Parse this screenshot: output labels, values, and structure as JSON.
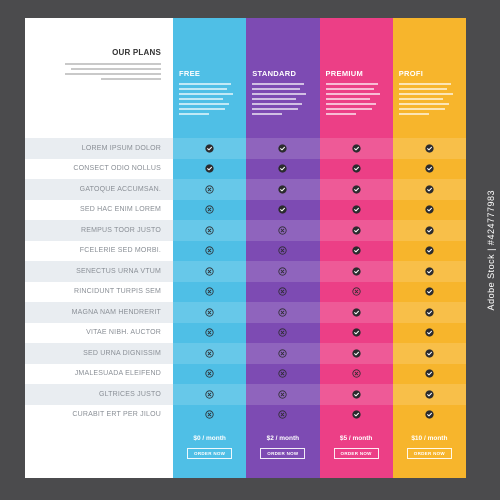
{
  "title": "OUR PLANS",
  "features": [
    "LOREM IPSUM DOLOR",
    "CONSECT ODIO NOLLUS",
    "GATOQUE ACCUMSAN.",
    "SED HAC ENIM LOREM",
    "REMPUS TOOR JUSTO",
    "FCELERIE SED MORBI.",
    "SENECTUS URNA VTUM",
    "RINCIDUNT TURPIS SEM",
    "MAGNA NAM HENDRERIT",
    "VITAE NIBH. AUCTOR",
    "SED URNA DIGNISSIM",
    "JMALESUADA ELEIFEND",
    "GLTRICES JUSTO",
    "CURABIT ERT PER JILOU"
  ],
  "plans": [
    {
      "name": "FREE",
      "color": "#4fbfe6",
      "price": "$0 / month",
      "button": "ORDER NOW",
      "features": [
        true,
        true,
        false,
        false,
        false,
        false,
        false,
        false,
        false,
        false,
        false,
        false,
        false,
        false
      ]
    },
    {
      "name": "STANDARD",
      "color": "#7d4bb3",
      "price": "$2 / month",
      "button": "ORDER NOW",
      "features": [
        true,
        true,
        true,
        true,
        false,
        false,
        false,
        false,
        false,
        false,
        false,
        false,
        false,
        false
      ]
    },
    {
      "name": "PREMIUM",
      "color": "#ec3f86",
      "price": "$5 / month",
      "button": "ORDER NOW",
      "features": [
        true,
        true,
        true,
        true,
        true,
        true,
        true,
        false,
        true,
        true,
        true,
        false,
        true,
        true
      ]
    },
    {
      "name": "PROFI",
      "color": "#f7b52c",
      "price": "$10 / month",
      "button": "ORDER NOW",
      "features": [
        true,
        true,
        true,
        true,
        true,
        true,
        true,
        true,
        true,
        true,
        true,
        true,
        true,
        true
      ]
    }
  ],
  "icons": {
    "included": "check-circle-icon",
    "excluded": "x-circle-icon"
  },
  "watermark": "Adobe Stock | #424777983"
}
